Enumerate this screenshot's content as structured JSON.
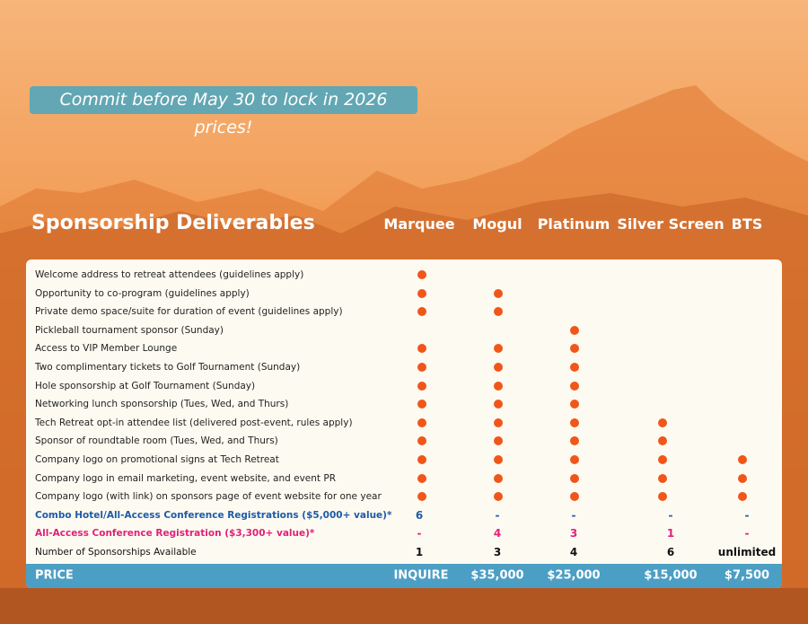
{
  "banner": "Commit before May 30 to lock in 2026 prices!",
  "title": "Sponsorship Deliverables",
  "columns": [
    "Marquee",
    "Mogul",
    "Platinum",
    "Silver Screen",
    "BTS"
  ],
  "rows": [
    {
      "label": "Welcome address to retreat attendees (guidelines apply)",
      "included": [
        true,
        false,
        false,
        false,
        false
      ]
    },
    {
      "label": "Opportunity to co-program (guidelines apply)",
      "included": [
        true,
        true,
        false,
        false,
        false
      ]
    },
    {
      "label": "Private demo space/suite for duration of event (guidelines apply)",
      "included": [
        true,
        true,
        false,
        false,
        false
      ]
    },
    {
      "label": "Pickleball tournament sponsor (Sunday)",
      "included": [
        false,
        false,
        true,
        false,
        false
      ]
    },
    {
      "label": "Access to VIP Member Lounge",
      "included": [
        true,
        true,
        true,
        false,
        false
      ]
    },
    {
      "label": "Two complimentary tickets to Golf Tournament (Sunday)",
      "included": [
        true,
        true,
        true,
        false,
        false
      ]
    },
    {
      "label": "Hole sponsorship at Golf Tournament (Sunday)",
      "included": [
        true,
        true,
        true,
        false,
        false
      ]
    },
    {
      "label": "Networking lunch sponsorship (Tues, Wed, and Thurs)",
      "included": [
        true,
        true,
        true,
        false,
        false
      ]
    },
    {
      "label": "Tech Retreat opt-in attendee list (delivered post-event, rules apply)",
      "included": [
        true,
        true,
        true,
        true,
        false
      ]
    },
    {
      "label": "Sponsor of roundtable room (Tues, Wed, and Thurs)",
      "included": [
        true,
        true,
        true,
        true,
        false
      ]
    },
    {
      "label": "Company logo on promotional signs at Tech Retreat",
      "included": [
        true,
        true,
        true,
        true,
        true
      ]
    },
    {
      "label": "Company logo in email marketing, event website, and event PR",
      "included": [
        true,
        true,
        true,
        true,
        true
      ]
    },
    {
      "label": "Company logo (with link) on sponsors page of event website for one year",
      "included": [
        true,
        true,
        true,
        true,
        true
      ]
    }
  ],
  "combo": {
    "label": "Combo Hotel/All-Access Conference Registrations ($5,000+ value)*",
    "cells": [
      "6",
      "-",
      "-",
      "-",
      "-"
    ]
  },
  "all_access": {
    "label": "All-Access Conference Registration ($3,300+ value)*",
    "cells": [
      "-",
      "4",
      "3",
      "1",
      "-"
    ]
  },
  "available": {
    "label": "Number of Sponsorships Available",
    "cells": [
      "1",
      "3",
      "4",
      "6",
      "unlimited"
    ]
  },
  "price": {
    "label": "PRICE",
    "cells": [
      "INQUIRE",
      "$35,000",
      "$25,000",
      "$15,000",
      "$7,500"
    ]
  }
}
